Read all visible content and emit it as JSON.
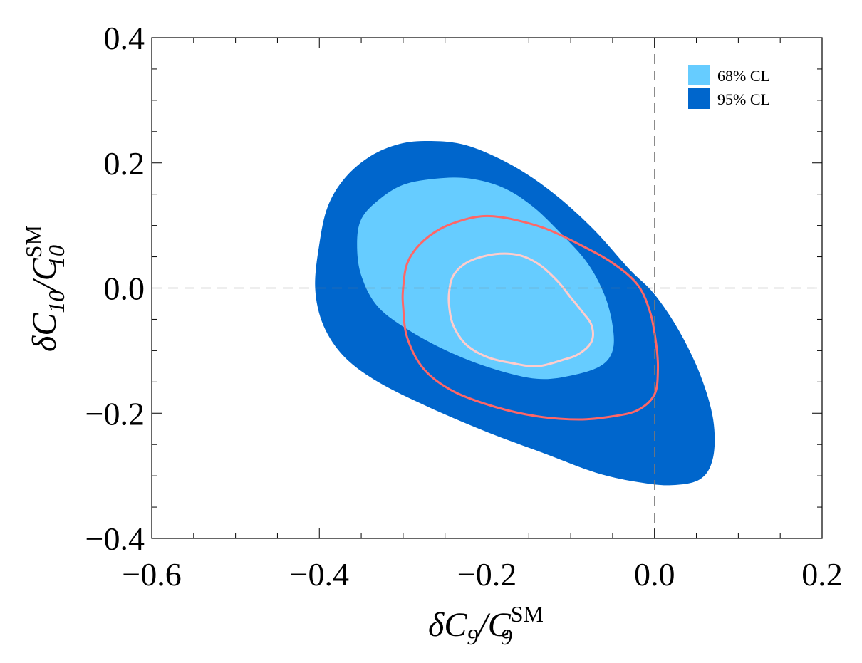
{
  "chart_data": {
    "type": "contour",
    "xlim": [
      -0.6,
      0.2
    ],
    "ylim": [
      -0.4,
      0.4
    ],
    "x_ticks": [
      -0.6,
      -0.4,
      -0.2,
      0.0,
      0.2
    ],
    "y_ticks": [
      -0.4,
      -0.2,
      0.0,
      0.2,
      0.4
    ],
    "x_tick_labels": [
      "−0.6",
      "−0.4",
      "−0.2",
      "0.0",
      "0.2"
    ],
    "y_tick_labels": [
      "−0.4",
      "−0.2",
      "0.0",
      "0.2",
      "0.4"
    ],
    "xlabel": {
      "prefix": "δC",
      "sub": "9",
      "slash": "/C",
      "sup": "SM",
      "sub2": "9"
    },
    "ylabel": {
      "prefix": "δC",
      "sub": "10",
      "slash": "/C",
      "sup": "SM",
      "sub2": "10"
    },
    "reference_lines": {
      "x": 0.0,
      "y": 0.0,
      "style": "dashed"
    },
    "legend": [
      {
        "label": "68% CL",
        "color": "#66ccff"
      },
      {
        "label": "95% CL",
        "color": "#0066cc"
      }
    ],
    "regions": [
      {
        "name": "95% CL",
        "color": "#0066cc",
        "points": [
          [
            -0.4,
            0.07
          ],
          [
            -0.39,
            0.13
          ],
          [
            -0.37,
            0.175
          ],
          [
            -0.34,
            0.21
          ],
          [
            -0.305,
            0.23
          ],
          [
            -0.27,
            0.235
          ],
          [
            -0.23,
            0.23
          ],
          [
            -0.19,
            0.21
          ],
          [
            -0.15,
            0.18
          ],
          [
            -0.11,
            0.14
          ],
          [
            -0.07,
            0.09
          ],
          [
            -0.03,
            0.03
          ],
          [
            0.0,
            -0.01
          ],
          [
            0.03,
            -0.07
          ],
          [
            0.055,
            -0.14
          ],
          [
            0.07,
            -0.21
          ],
          [
            0.07,
            -0.27
          ],
          [
            0.055,
            -0.305
          ],
          [
            0.02,
            -0.315
          ],
          [
            -0.02,
            -0.31
          ],
          [
            -0.07,
            -0.295
          ],
          [
            -0.13,
            -0.265
          ],
          [
            -0.2,
            -0.23
          ],
          [
            -0.27,
            -0.19
          ],
          [
            -0.33,
            -0.15
          ],
          [
            -0.37,
            -0.11
          ],
          [
            -0.395,
            -0.06
          ],
          [
            -0.405,
            0.0
          ],
          [
            -0.4,
            0.07
          ]
        ]
      },
      {
        "name": "68% CL",
        "color": "#66ccff",
        "points": [
          [
            -0.355,
            0.07
          ],
          [
            -0.35,
            0.11
          ],
          [
            -0.33,
            0.14
          ],
          [
            -0.3,
            0.165
          ],
          [
            -0.26,
            0.175
          ],
          [
            -0.22,
            0.175
          ],
          [
            -0.18,
            0.16
          ],
          [
            -0.145,
            0.13
          ],
          [
            -0.11,
            0.085
          ],
          [
            -0.08,
            0.04
          ],
          [
            -0.06,
            -0.01
          ],
          [
            -0.05,
            -0.06
          ],
          [
            -0.05,
            -0.1
          ],
          [
            -0.065,
            -0.125
          ],
          [
            -0.1,
            -0.14
          ],
          [
            -0.14,
            -0.145
          ],
          [
            -0.19,
            -0.13
          ],
          [
            -0.24,
            -0.105
          ],
          [
            -0.29,
            -0.07
          ],
          [
            -0.33,
            -0.03
          ],
          [
            -0.35,
            0.02
          ],
          [
            -0.355,
            0.07
          ]
        ]
      }
    ],
    "contours": [
      {
        "name": "outer-red-contour",
        "color": "#ff6666",
        "points": [
          [
            -0.3,
            0.0
          ],
          [
            -0.295,
            0.04
          ],
          [
            -0.28,
            0.07
          ],
          [
            -0.255,
            0.095
          ],
          [
            -0.225,
            0.11
          ],
          [
            -0.2,
            0.115
          ],
          [
            -0.17,
            0.11
          ],
          [
            -0.13,
            0.095
          ],
          [
            -0.09,
            0.07
          ],
          [
            -0.05,
            0.04
          ],
          [
            -0.02,
            0.005
          ],
          [
            -0.005,
            -0.04
          ],
          [
            0.002,
            -0.09
          ],
          [
            0.004,
            -0.13
          ],
          [
            0.0,
            -0.17
          ],
          [
            -0.02,
            -0.195
          ],
          [
            -0.05,
            -0.205
          ],
          [
            -0.09,
            -0.21
          ],
          [
            -0.14,
            -0.205
          ],
          [
            -0.19,
            -0.19
          ],
          [
            -0.24,
            -0.165
          ],
          [
            -0.275,
            -0.13
          ],
          [
            -0.295,
            -0.08
          ],
          [
            -0.3,
            -0.03
          ],
          [
            -0.3,
            0.0
          ]
        ]
      },
      {
        "name": "inner-pink-contour",
        "color": "#ffcccc",
        "points": [
          [
            -0.245,
            -0.005
          ],
          [
            -0.24,
            0.02
          ],
          [
            -0.225,
            0.04
          ],
          [
            -0.2,
            0.052
          ],
          [
            -0.175,
            0.055
          ],
          [
            -0.155,
            0.05
          ],
          [
            -0.135,
            0.035
          ],
          [
            -0.115,
            0.01
          ],
          [
            -0.1,
            -0.015
          ],
          [
            -0.085,
            -0.04
          ],
          [
            -0.075,
            -0.06
          ],
          [
            -0.075,
            -0.085
          ],
          [
            -0.09,
            -0.105
          ],
          [
            -0.11,
            -0.115
          ],
          [
            -0.14,
            -0.125
          ],
          [
            -0.17,
            -0.12
          ],
          [
            -0.2,
            -0.11
          ],
          [
            -0.225,
            -0.09
          ],
          [
            -0.24,
            -0.06
          ],
          [
            -0.245,
            -0.03
          ],
          [
            -0.245,
            -0.005
          ]
        ]
      }
    ]
  }
}
